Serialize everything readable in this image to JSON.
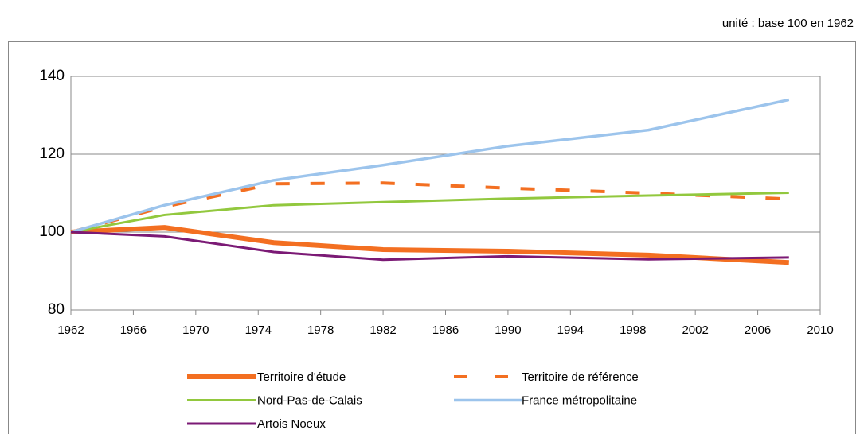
{
  "chart_data": {
    "type": "line",
    "note": "unité : base 100 en 1962",
    "x": [
      1962,
      1968,
      1975,
      1982,
      1990,
      1999,
      2008
    ],
    "xlim": [
      1962,
      2010
    ],
    "xticks": [
      1962,
      1966,
      1970,
      1974,
      1978,
      1982,
      1986,
      1990,
      1994,
      1998,
      2002,
      2006,
      2010
    ],
    "ylim": [
      80,
      140
    ],
    "yticks": [
      80,
      100,
      120,
      140
    ],
    "grid": true,
    "legend": "bottom",
    "series": [
      {
        "name": "Territoire d'étude",
        "color": "#f36f21",
        "style": "solid",
        "width": 6,
        "values": [
          100,
          101.2,
          97.3,
          95.5,
          95.1,
          94.1,
          92.2
        ]
      },
      {
        "name": "Territoire de référence",
        "color": "#f36f21",
        "style": "dashed",
        "width": 4,
        "values": [
          100,
          106.5,
          112.4,
          112.6,
          111.3,
          110,
          108.5
        ]
      },
      {
        "name": "Nord-Pas-de-Calais",
        "color": "#92c83e",
        "style": "solid",
        "width": 3,
        "values": [
          100,
          104.4,
          106.9,
          107.7,
          108.6,
          109.4,
          110.1
        ]
      },
      {
        "name": "France métropolitaine",
        "color": "#9cc4ec",
        "style": "solid",
        "width": 3.5,
        "values": [
          100,
          106.9,
          113.3,
          117.2,
          122.1,
          126.2,
          134
        ]
      },
      {
        "name": "Artois Noeux",
        "color": "#7b1a75",
        "style": "solid",
        "width": 3,
        "values": [
          100,
          98.9,
          94.9,
          92.9,
          93.8,
          93,
          93.5
        ]
      }
    ]
  }
}
